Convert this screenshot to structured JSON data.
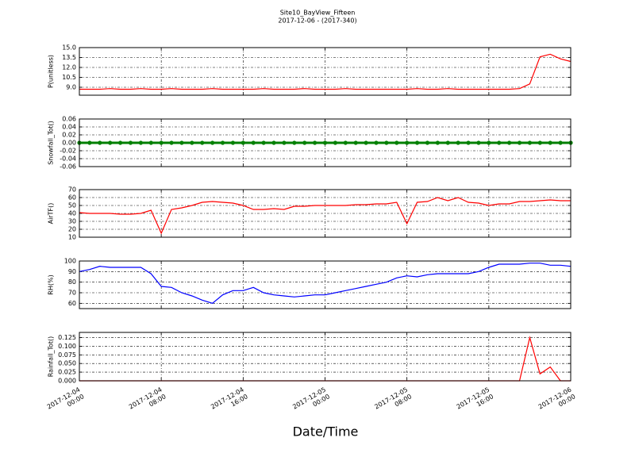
{
  "chart_data": [
    {
      "type": "line",
      "title": "Site10_BayView_Fifteen",
      "subtitle": "2017-12-06 - (2017-340)",
      "ylabel": "P(unitless)",
      "x": [
        "2017-12-04 00:00",
        "2017-12-04 01:00",
        "2017-12-04 02:00",
        "2017-12-04 03:00",
        "2017-12-04 04:00",
        "2017-12-04 05:00",
        "2017-12-04 06:00",
        "2017-12-04 07:00",
        "2017-12-04 08:00",
        "2017-12-04 09:00",
        "2017-12-04 10:00",
        "2017-12-04 11:00",
        "2017-12-04 12:00",
        "2017-12-04 13:00",
        "2017-12-04 14:00",
        "2017-12-04 15:00",
        "2017-12-04 16:00",
        "2017-12-04 17:00",
        "2017-12-04 18:00",
        "2017-12-04 19:00",
        "2017-12-04 20:00",
        "2017-12-04 21:00",
        "2017-12-04 22:00",
        "2017-12-04 23:00",
        "2017-12-05 00:00",
        "2017-12-05 01:00",
        "2017-12-05 02:00",
        "2017-12-05 03:00",
        "2017-12-05 04:00",
        "2017-12-05 05:00",
        "2017-12-05 06:00",
        "2017-12-05 07:00",
        "2017-12-05 08:00",
        "2017-12-05 09:00",
        "2017-12-05 10:00",
        "2017-12-05 11:00",
        "2017-12-05 12:00",
        "2017-12-05 13:00",
        "2017-12-05 14:00",
        "2017-12-05 15:00",
        "2017-12-05 16:00",
        "2017-12-05 17:00",
        "2017-12-05 18:00",
        "2017-12-05 19:00",
        "2017-12-05 20:00",
        "2017-12-05 21:00",
        "2017-12-05 22:00",
        "2017-12-05 23:00",
        "2017-12-06 00:00"
      ],
      "series": [
        {
          "color": "#ff0000",
          "values": [
            8.7,
            8.7,
            8.7,
            8.8,
            8.7,
            8.7,
            8.8,
            8.7,
            8.7,
            8.8,
            8.7,
            8.7,
            8.7,
            8.8,
            8.7,
            8.7,
            8.7,
            8.7,
            8.8,
            8.7,
            8.7,
            8.7,
            8.8,
            8.7,
            8.7,
            8.7,
            8.8,
            8.7,
            8.7,
            8.7,
            8.7,
            8.7,
            8.7,
            8.8,
            8.7,
            8.7,
            8.8,
            8.7,
            8.7,
            8.7,
            8.7,
            8.7,
            8.7,
            8.8,
            9.5,
            13.6,
            14.0,
            13.3,
            12.9
          ]
        }
      ],
      "xlim": [
        "2017-12-04 00:00",
        "2017-12-06 00:00"
      ],
      "xticks": [
        "2017-12-04 00:00",
        "2017-12-04 08:00",
        "2017-12-04 16:00",
        "2017-12-05 00:00",
        "2017-12-05 08:00",
        "2017-12-05 16:00",
        "2017-12-06 00:00"
      ],
      "ylim": [
        7.8,
        15
      ],
      "yticks": [
        {
          "value": 9,
          "label": "9.0"
        },
        10.5,
        {
          "value": 12,
          "label": "12.0"
        },
        13.5,
        {
          "value": 15,
          "label": "15.0"
        }
      ],
      "grid": true
    },
    {
      "type": "line",
      "ylabel": "Snowfall_Tot()",
      "x": [
        "2017-12-04 00:00",
        "2017-12-04 01:00",
        "2017-12-04 02:00",
        "2017-12-04 03:00",
        "2017-12-04 04:00",
        "2017-12-04 05:00",
        "2017-12-04 06:00",
        "2017-12-04 07:00",
        "2017-12-04 08:00",
        "2017-12-04 09:00",
        "2017-12-04 10:00",
        "2017-12-04 11:00",
        "2017-12-04 12:00",
        "2017-12-04 13:00",
        "2017-12-04 14:00",
        "2017-12-04 15:00",
        "2017-12-04 16:00",
        "2017-12-04 17:00",
        "2017-12-04 18:00",
        "2017-12-04 19:00",
        "2017-12-04 20:00",
        "2017-12-04 21:00",
        "2017-12-04 22:00",
        "2017-12-04 23:00",
        "2017-12-05 00:00",
        "2017-12-05 01:00",
        "2017-12-05 02:00",
        "2017-12-05 03:00",
        "2017-12-05 04:00",
        "2017-12-05 05:00",
        "2017-12-05 06:00",
        "2017-12-05 07:00",
        "2017-12-05 08:00",
        "2017-12-05 09:00",
        "2017-12-05 10:00",
        "2017-12-05 11:00",
        "2017-12-05 12:00",
        "2017-12-05 13:00",
        "2017-12-05 14:00",
        "2017-12-05 15:00",
        "2017-12-05 16:00",
        "2017-12-05 17:00",
        "2017-12-05 18:00",
        "2017-12-05 19:00",
        "2017-12-05 20:00",
        "2017-12-05 21:00",
        "2017-12-05 22:00",
        "2017-12-05 23:00",
        "2017-12-06 00:00"
      ],
      "series": [
        {
          "color": "#008000",
          "marker": true,
          "values": [
            0,
            0,
            0,
            0,
            0,
            0,
            0,
            0,
            0,
            0,
            0,
            0,
            0,
            0,
            0,
            0,
            0,
            0,
            0,
            0,
            0,
            0,
            0,
            0,
            0,
            0,
            0,
            0,
            0,
            0,
            0,
            0,
            0,
            0,
            0,
            0,
            0,
            0,
            0,
            0,
            0,
            0,
            0,
            0,
            0,
            0,
            0,
            0,
            0
          ]
        }
      ],
      "xlim": [
        "2017-12-04 00:00",
        "2017-12-06 00:00"
      ],
      "xticks": [
        "2017-12-04 00:00",
        "2017-12-04 08:00",
        "2017-12-04 16:00",
        "2017-12-05 00:00",
        "2017-12-05 08:00",
        "2017-12-05 16:00",
        "2017-12-06 00:00"
      ],
      "ylim": [
        -0.06,
        0.06
      ],
      "yticks": [
        -0.06,
        -0.04,
        -0.02,
        {
          "value": 0,
          "label": "0.00"
        },
        0.02,
        0.04,
        0.06
      ],
      "grid": true
    },
    {
      "type": "line",
      "ylabel": "AirTF()",
      "x": [
        "2017-12-04 00:00",
        "2017-12-04 01:00",
        "2017-12-04 02:00",
        "2017-12-04 03:00",
        "2017-12-04 04:00",
        "2017-12-04 05:00",
        "2017-12-04 06:00",
        "2017-12-04 07:00",
        "2017-12-04 08:00",
        "2017-12-04 09:00",
        "2017-12-04 10:00",
        "2017-12-04 11:00",
        "2017-12-04 12:00",
        "2017-12-04 13:00",
        "2017-12-04 14:00",
        "2017-12-04 15:00",
        "2017-12-04 16:00",
        "2017-12-04 17:00",
        "2017-12-04 18:00",
        "2017-12-04 19:00",
        "2017-12-04 20:00",
        "2017-12-04 21:00",
        "2017-12-04 22:00",
        "2017-12-04 23:00",
        "2017-12-05 00:00",
        "2017-12-05 01:00",
        "2017-12-05 02:00",
        "2017-12-05 03:00",
        "2017-12-05 04:00",
        "2017-12-05 05:00",
        "2017-12-05 06:00",
        "2017-12-05 07:00",
        "2017-12-05 08:00",
        "2017-12-05 09:00",
        "2017-12-05 10:00",
        "2017-12-05 11:00",
        "2017-12-05 12:00",
        "2017-12-05 13:00",
        "2017-12-05 14:00",
        "2017-12-05 15:00",
        "2017-12-05 16:00",
        "2017-12-05 17:00",
        "2017-12-05 18:00",
        "2017-12-05 19:00",
        "2017-12-05 20:00",
        "2017-12-05 21:00",
        "2017-12-05 22:00",
        "2017-12-05 23:00",
        "2017-12-06 00:00"
      ],
      "series": [
        {
          "color": "#ff0000",
          "values": [
            41,
            40,
            40,
            40,
            39,
            39,
            40,
            44,
            15,
            45,
            47,
            50,
            54,
            55,
            54,
            53,
            50,
            45,
            45,
            46,
            45,
            49,
            49,
            50,
            50,
            50,
            50,
            51,
            51,
            52,
            52,
            54,
            27,
            54,
            55,
            60,
            56,
            60,
            54,
            53,
            50,
            52,
            52,
            55,
            55,
            56,
            57,
            56,
            56
          ]
        }
      ],
      "xlim": [
        "2017-12-04 00:00",
        "2017-12-06 00:00"
      ],
      "xticks": [
        "2017-12-04 00:00",
        "2017-12-04 08:00",
        "2017-12-04 16:00",
        "2017-12-05 00:00",
        "2017-12-05 08:00",
        "2017-12-05 16:00",
        "2017-12-06 00:00"
      ],
      "ylim": [
        10,
        70
      ],
      "yticks": [
        10,
        20,
        30,
        40,
        50,
        60,
        70
      ],
      "grid": true
    },
    {
      "type": "line",
      "ylabel": "RH(%)",
      "x": [
        "2017-12-04 00:00",
        "2017-12-04 01:00",
        "2017-12-04 02:00",
        "2017-12-04 03:00",
        "2017-12-04 04:00",
        "2017-12-04 05:00",
        "2017-12-04 06:00",
        "2017-12-04 07:00",
        "2017-12-04 08:00",
        "2017-12-04 09:00",
        "2017-12-04 10:00",
        "2017-12-04 11:00",
        "2017-12-04 12:00",
        "2017-12-04 13:00",
        "2017-12-04 14:00",
        "2017-12-04 15:00",
        "2017-12-04 16:00",
        "2017-12-04 17:00",
        "2017-12-04 18:00",
        "2017-12-04 19:00",
        "2017-12-04 20:00",
        "2017-12-04 21:00",
        "2017-12-04 22:00",
        "2017-12-04 23:00",
        "2017-12-05 00:00",
        "2017-12-05 01:00",
        "2017-12-05 02:00",
        "2017-12-05 03:00",
        "2017-12-05 04:00",
        "2017-12-05 05:00",
        "2017-12-05 06:00",
        "2017-12-05 07:00",
        "2017-12-05 08:00",
        "2017-12-05 09:00",
        "2017-12-05 10:00",
        "2017-12-05 11:00",
        "2017-12-05 12:00",
        "2017-12-05 13:00",
        "2017-12-05 14:00",
        "2017-12-05 15:00",
        "2017-12-05 16:00",
        "2017-12-05 17:00",
        "2017-12-05 18:00",
        "2017-12-05 19:00",
        "2017-12-05 20:00",
        "2017-12-05 21:00",
        "2017-12-05 22:00",
        "2017-12-05 23:00",
        "2017-12-06 00:00"
      ],
      "series": [
        {
          "color": "#0000ff",
          "values": [
            90,
            92,
            95,
            94,
            94,
            94,
            94,
            88,
            76,
            75,
            70,
            67,
            63,
            60,
            68,
            72,
            72,
            75,
            70,
            68,
            67,
            66,
            67,
            68,
            68,
            70,
            72,
            74,
            76,
            78,
            80,
            84,
            86,
            85,
            87,
            88,
            88,
            88,
            88,
            90,
            94,
            97,
            97,
            97,
            98,
            98,
            96,
            96,
            95
          ]
        }
      ],
      "xlim": [
        "2017-12-04 00:00",
        "2017-12-06 00:00"
      ],
      "xticks": [
        "2017-12-04 00:00",
        "2017-12-04 08:00",
        "2017-12-04 16:00",
        "2017-12-05 00:00",
        "2017-12-05 08:00",
        "2017-12-05 16:00",
        "2017-12-06 00:00"
      ],
      "ylim": [
        55,
        100
      ],
      "yticks": [
        60,
        70,
        80,
        90,
        100
      ],
      "grid": true
    },
    {
      "type": "line",
      "ylabel": "Rainfall_Tot()",
      "xlabel": "Date/Time",
      "x": [
        "2017-12-04 00:00",
        "2017-12-04 01:00",
        "2017-12-04 02:00",
        "2017-12-04 03:00",
        "2017-12-04 04:00",
        "2017-12-04 05:00",
        "2017-12-04 06:00",
        "2017-12-04 07:00",
        "2017-12-04 08:00",
        "2017-12-04 09:00",
        "2017-12-04 10:00",
        "2017-12-04 11:00",
        "2017-12-04 12:00",
        "2017-12-04 13:00",
        "2017-12-04 14:00",
        "2017-12-04 15:00",
        "2017-12-04 16:00",
        "2017-12-04 17:00",
        "2017-12-04 18:00",
        "2017-12-04 19:00",
        "2017-12-04 20:00",
        "2017-12-04 21:00",
        "2017-12-04 22:00",
        "2017-12-04 23:00",
        "2017-12-05 00:00",
        "2017-12-05 01:00",
        "2017-12-05 02:00",
        "2017-12-05 03:00",
        "2017-12-05 04:00",
        "2017-12-05 05:00",
        "2017-12-05 06:00",
        "2017-12-05 07:00",
        "2017-12-05 08:00",
        "2017-12-05 09:00",
        "2017-12-05 10:00",
        "2017-12-05 11:00",
        "2017-12-05 12:00",
        "2017-12-05 13:00",
        "2017-12-05 14:00",
        "2017-12-05 15:00",
        "2017-12-05 16:00",
        "2017-12-05 17:00",
        "2017-12-05 18:00",
        "2017-12-05 19:00",
        "2017-12-05 20:00",
        "2017-12-05 21:00",
        "2017-12-05 22:00",
        "2017-12-05 23:00",
        "2017-12-06 00:00"
      ],
      "series": [
        {
          "color": "#ff0000",
          "values": [
            0,
            0,
            0,
            0,
            0,
            0,
            0,
            0,
            0,
            0,
            0,
            0,
            0,
            0,
            0,
            0,
            0,
            0,
            0,
            0,
            0,
            0,
            0,
            0,
            0,
            0,
            0,
            0,
            0,
            0,
            0,
            0,
            0,
            0,
            0,
            0,
            0,
            0,
            0,
            0,
            0,
            0,
            0,
            0,
            0.125,
            0.02,
            0.04,
            0,
            0
          ]
        }
      ],
      "xlim": [
        "2017-12-04 00:00",
        "2017-12-06 00:00"
      ],
      "xticks": [
        "2017-12-04 00:00",
        "2017-12-04 08:00",
        "2017-12-04 16:00",
        "2017-12-05 00:00",
        "2017-12-05 08:00",
        "2017-12-05 16:00",
        "2017-12-06 00:00"
      ],
      "ylim": [
        0,
        0.14
      ],
      "yticks": [
        {
          "value": 0,
          "label": "0.000"
        },
        {
          "value": 0.025,
          "label": "0.025"
        },
        {
          "value": 0.05,
          "label": "0.050"
        },
        {
          "value": 0.075,
          "label": "0.075"
        },
        {
          "value": 0.1,
          "label": "0.100"
        },
        {
          "value": 0.125,
          "label": "0.125"
        }
      ],
      "grid": true
    }
  ]
}
